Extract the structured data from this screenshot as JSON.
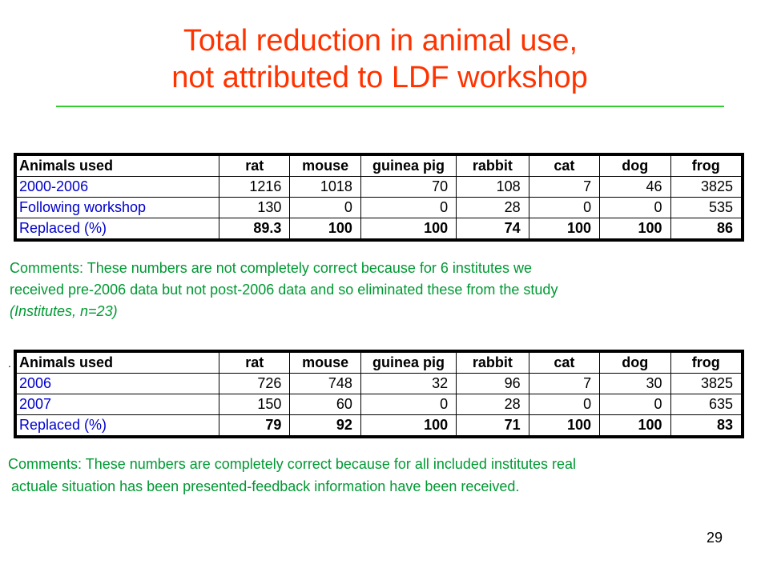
{
  "title": {
    "line1": "Total reduction in animal use,",
    "line2": "not attributed to LDF workshop"
  },
  "table1": {
    "header": [
      "Animals used",
      "rat",
      "mouse",
      "guinea pig",
      "rabbit",
      "cat",
      "dog",
      "frog"
    ],
    "rows": [
      {
        "label": "2000-2006",
        "values": [
          "1216",
          "1018",
          "70",
          "108",
          "7",
          "46",
          "3825"
        ]
      },
      {
        "label": "Following workshop",
        "values": [
          "130",
          "0",
          "0",
          "28",
          "0",
          "0",
          "535"
        ]
      },
      {
        "label": "Replaced (%)",
        "values": [
          "89.3",
          "100",
          "100",
          "74",
          "100",
          "100",
          "86"
        ]
      }
    ]
  },
  "comment1": {
    "line1": "Comments: These numbers are not completely correct because for 6 institutes we",
    "line2": "received pre-2006 data but not post-2006 data and so eliminated these from the study",
    "line3": "(Institutes, n=23)"
  },
  "separator_dot": ".",
  "table2": {
    "header": [
      "Animals used",
      "rat",
      "mouse",
      "guinea pig",
      "rabbit",
      "cat",
      "dog",
      "frog"
    ],
    "rows": [
      {
        "label": "2006",
        "values": [
          "726",
          "748",
          "32",
          "96",
          "7",
          "30",
          "3825"
        ]
      },
      {
        "label": "2007",
        "values": [
          "150",
          "60",
          "0",
          "28",
          "0",
          "0",
          "635"
        ]
      },
      {
        "label": "Replaced (%)",
        "values": [
          "79",
          "92",
          "100",
          "71",
          "100",
          "100",
          "83"
        ]
      }
    ]
  },
  "comment2": {
    "line1": "Comments: These numbers are completely correct because for all included institutes real",
    "line2": "actuale situation has been presented-feedback information have been received."
  },
  "page_number": "29",
  "colors": {
    "title": "#ff3300",
    "rule": "#33cc33",
    "comment": "#009933",
    "row_label": "#0000cc"
  }
}
